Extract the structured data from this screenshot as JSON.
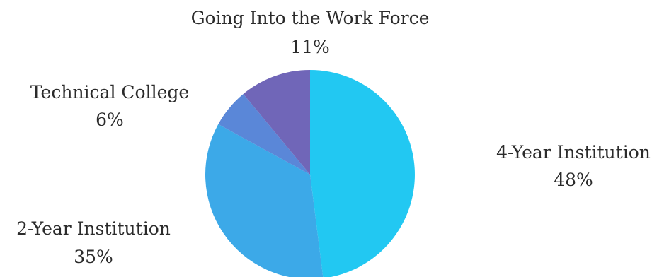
{
  "chart_data": {
    "type": "pie",
    "title": "",
    "slices": [
      {
        "label": "4-Year Institution",
        "value": 48,
        "display": "48%",
        "color": "#22c8f2"
      },
      {
        "label": "2-Year Institution",
        "value": 35,
        "display": "35%",
        "color": "#3ca9e8"
      },
      {
        "label": "Technical College",
        "value": 6,
        "display": "6%",
        "color": "#5a87d8"
      },
      {
        "label": "Going Into the Work Force",
        "value": 11,
        "display": "11%",
        "color": "#7066b8"
      }
    ],
    "start_angle": "12 o'clock",
    "direction": "clockwise",
    "legend": "none (data labels beside slices)"
  }
}
